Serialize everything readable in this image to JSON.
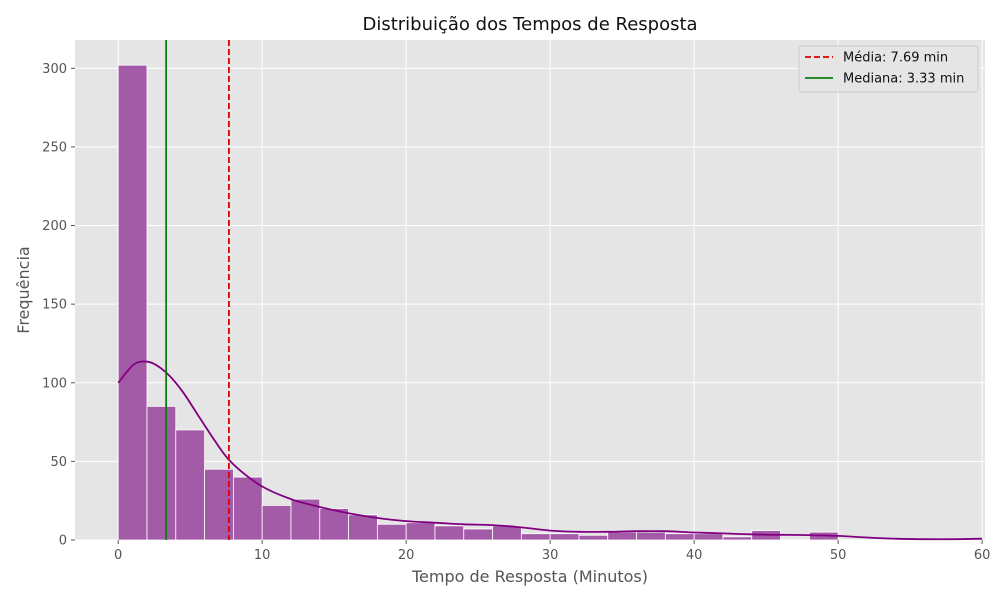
{
  "chart_data": {
    "type": "bar",
    "title": "Distribuição dos Tempos de Resposta",
    "xlabel": "Tempo de Resposta (Minutos)",
    "ylabel": "Frequência",
    "xlim": [
      -3,
      60.2
    ],
    "ylim": [
      0,
      318
    ],
    "xticks": [
      0,
      10,
      20,
      30,
      40,
      50,
      60
    ],
    "yticks": [
      0,
      50,
      100,
      150,
      200,
      250,
      300
    ],
    "grid": true,
    "legend_position": "top-right",
    "bin_width": 2,
    "bins": [
      {
        "x0": 0,
        "x1": 2,
        "count": 302
      },
      {
        "x0": 2,
        "x1": 4,
        "count": 85
      },
      {
        "x0": 4,
        "x1": 6,
        "count": 70
      },
      {
        "x0": 6,
        "x1": 8,
        "count": 45
      },
      {
        "x0": 8,
        "x1": 10,
        "count": 40
      },
      {
        "x0": 10,
        "x1": 12,
        "count": 22
      },
      {
        "x0": 12,
        "x1": 14,
        "count": 26
      },
      {
        "x0": 14,
        "x1": 16,
        "count": 20
      },
      {
        "x0": 16,
        "x1": 18,
        "count": 16
      },
      {
        "x0": 18,
        "x1": 20,
        "count": 10
      },
      {
        "x0": 20,
        "x1": 22,
        "count": 11
      },
      {
        "x0": 22,
        "x1": 24,
        "count": 9
      },
      {
        "x0": 24,
        "x1": 26,
        "count": 7
      },
      {
        "x0": 26,
        "x1": 28,
        "count": 9
      },
      {
        "x0": 28,
        "x1": 30,
        "count": 4
      },
      {
        "x0": 30,
        "x1": 32,
        "count": 4
      },
      {
        "x0": 32,
        "x1": 34,
        "count": 3
      },
      {
        "x0": 34,
        "x1": 36,
        "count": 5
      },
      {
        "x0": 36,
        "x1": 38,
        "count": 5
      },
      {
        "x0": 38,
        "x1": 40,
        "count": 4
      },
      {
        "x0": 40,
        "x1": 42,
        "count": 4
      },
      {
        "x0": 42,
        "x1": 44,
        "count": 2
      },
      {
        "x0": 44,
        "x1": 46,
        "count": 6
      },
      {
        "x0": 46,
        "x1": 48,
        "count": 0
      },
      {
        "x0": 48,
        "x1": 50,
        "count": 5
      },
      {
        "x0": 50,
        "x1": 52,
        "count": 0
      },
      {
        "x0": 52,
        "x1": 54,
        "count": 0
      },
      {
        "x0": 54,
        "x1": 56,
        "count": 0
      },
      {
        "x0": 56,
        "x1": 58,
        "count": 0
      },
      {
        "x0": 58,
        "x1": 60,
        "count": 1
      }
    ],
    "kde": {
      "x": [
        0,
        1,
        1.7,
        2.5,
        3.5,
        4.5,
        5.5,
        6.5,
        7.5,
        8.5,
        10,
        12,
        14,
        16,
        18,
        20,
        22,
        24,
        26,
        28,
        30,
        32,
        34,
        36,
        38,
        40,
        42,
        44,
        46,
        48,
        50,
        52,
        54,
        56,
        58,
        60
      ],
      "y": [
        100,
        111,
        113.5,
        112,
        105,
        94,
        80,
        66,
        53,
        44,
        34,
        26,
        21,
        17,
        14,
        12,
        11,
        10,
        9.5,
        8,
        6,
        5.2,
        5.2,
        5.6,
        5.6,
        4.8,
        4.2,
        3.6,
        3.3,
        3.1,
        2.6,
        1.6,
        0.8,
        0.5,
        0.5,
        0.8
      ]
    },
    "vlines": [
      {
        "label": "Média: 7.69 min",
        "x": 7.69,
        "color": "#dd0000",
        "style": "dashed"
      },
      {
        "label": "Mediana: 3.33 min",
        "x": 3.33,
        "color": "#107a10",
        "style": "solid"
      }
    ],
    "colors": {
      "bar_fill": "#a35ba8",
      "bar_edge": "#ffffff",
      "kde_line": "#800080",
      "plot_background": "#e5e5e5",
      "grid": "#ffffff"
    }
  }
}
